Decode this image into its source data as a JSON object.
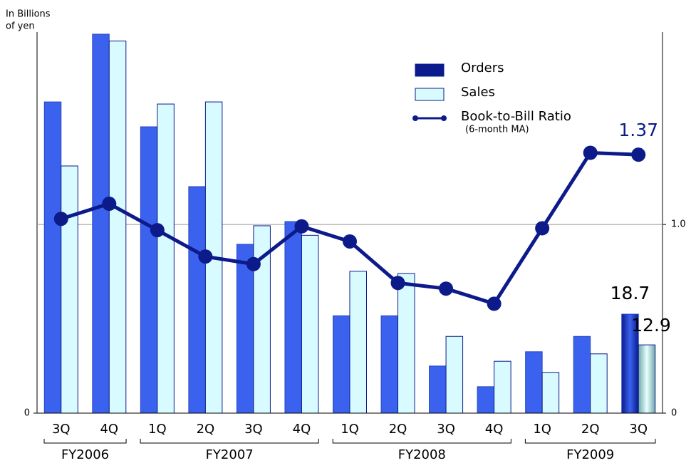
{
  "chart_data": {
    "type": "bar",
    "y_label": [
      "In Billions",
      "of yen"
    ],
    "groups": [
      {
        "label": "FY2006",
        "categories": [
          "3Q",
          "4Q"
        ]
      },
      {
        "label": "FY2007",
        "categories": [
          "1Q",
          "2Q",
          "3Q",
          "4Q"
        ]
      },
      {
        "label": "FY2008",
        "categories": [
          "1Q",
          "2Q",
          "3Q",
          "4Q"
        ]
      },
      {
        "label": "FY2009",
        "categories": [
          "1Q",
          "2Q",
          "3Q"
        ]
      }
    ],
    "series": [
      {
        "name": "Orders",
        "type": "bar",
        "color": "#3a62ee",
        "legend_color": "#0b1a8c",
        "values": [
          58.8,
          71.6,
          54.1,
          42.8,
          31.9,
          36.2,
          18.4,
          18.4,
          8.9,
          5.0,
          11.6,
          14.5,
          18.7
        ],
        "value_labels": [
          null,
          null,
          null,
          null,
          null,
          null,
          null,
          null,
          null,
          null,
          null,
          null,
          "18.7"
        ]
      },
      {
        "name": "Sales",
        "type": "bar",
        "color": "#d8fbff",
        "values": [
          46.7,
          70.3,
          58.4,
          58.8,
          35.4,
          33.6,
          26.8,
          26.4,
          14.5,
          9.8,
          7.7,
          11.2,
          12.9
        ],
        "value_labels": [
          null,
          null,
          null,
          null,
          null,
          null,
          null,
          null,
          null,
          null,
          null,
          null,
          "12.9"
        ]
      },
      {
        "name": "Book-to-Bill Ratio",
        "subtitle": "(6-month MA)",
        "type": "line",
        "axis": "y2",
        "color": "#0d1a8a",
        "values": [
          1.03,
          1.11,
          0.97,
          0.83,
          0.79,
          0.99,
          0.91,
          0.69,
          0.66,
          0.58,
          0.98,
          1.38,
          1.37
        ],
        "value_labels": [
          null,
          null,
          null,
          null,
          null,
          null,
          null,
          null,
          null,
          null,
          null,
          null,
          "1.37"
        ]
      }
    ],
    "ylim": [
      0,
      72
    ],
    "yticks": [
      0
    ],
    "y2lim": [
      0,
      2.02
    ],
    "y2ticks": [
      0,
      {
        "value": 1,
        "label": "1.0"
      }
    ],
    "grid": true
  }
}
